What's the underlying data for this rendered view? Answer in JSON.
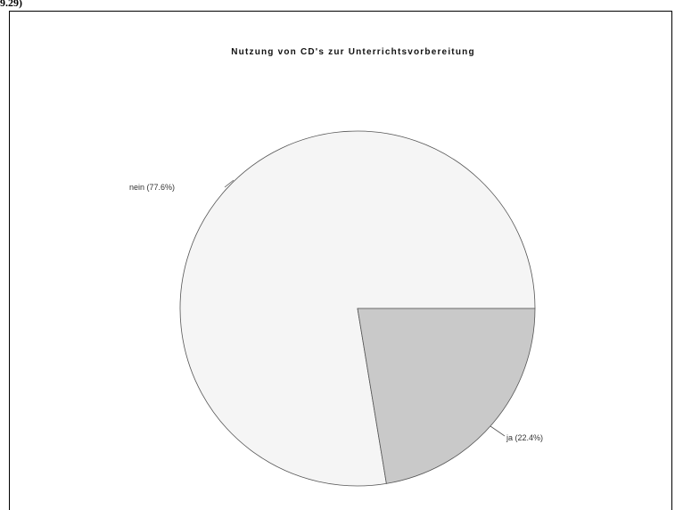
{
  "header_fragment": "9.29)",
  "chart_data": {
    "type": "pie",
    "title": "Nutzung von CD's zur Unterrichtsvorbereitung",
    "slices": [
      {
        "label": "nein (77.6%)",
        "value": 77.6,
        "color": "#f5f5f5"
      },
      {
        "label": "ja (22.4%)",
        "value": 22.4,
        "color": "#c9c9c9"
      }
    ],
    "start_angle_deg": 0,
    "direction": "clockwise",
    "outline_color": "#555555"
  }
}
